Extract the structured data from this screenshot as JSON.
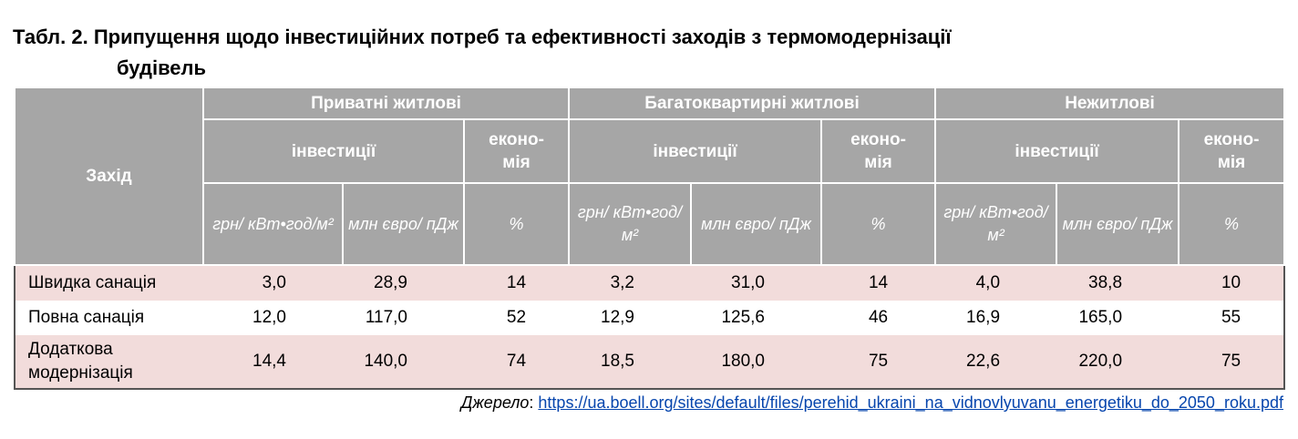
{
  "title": {
    "line1": "Табл. 2. Припущення щодо інвестиційних потреб та ефективності заходів з термомодернізації",
    "line2": "будівель"
  },
  "table": {
    "measure_header": "Захід",
    "groups": [
      {
        "name": "Приватні житлові",
        "investments": "інвестиції",
        "economy": "еконо-мія",
        "units": [
          "грн/ кВт•год/м²",
          "млн євро/ пДж",
          "%"
        ]
      },
      {
        "name": "Багатоквартирні житлові",
        "investments": "інвестиції",
        "economy": "еконо-мія",
        "units": [
          "грн/ кВт•год/ м²",
          "млн євро/ пДж",
          "%"
        ]
      },
      {
        "name": "Нежитлові",
        "investments": "інвестиції",
        "economy": "еконо-мія",
        "units": [
          "грн/ кВт•год/ м²",
          "млн євро/ пДж",
          "%"
        ]
      }
    ],
    "rows": [
      {
        "label": "Швидка санація",
        "cells": [
          "3,0",
          "28,9",
          "14",
          "3,2",
          "31,0",
          "14",
          "4,0",
          "38,8",
          "10"
        ]
      },
      {
        "label": "Повна санація",
        "cells": [
          "12,0",
          "117,0",
          "52",
          "12,9",
          "125,6",
          "46",
          "16,9",
          "165,0",
          "55"
        ]
      },
      {
        "label": "Додаткова модернізація",
        "cells": [
          "14,4",
          "140,0",
          "74",
          "18,5",
          "180,0",
          "75",
          "22,6",
          "220,0",
          "75"
        ]
      }
    ]
  },
  "source": {
    "label": "Джерело",
    "url": "https://ua.boell.org/sites/default/files/perehid_ukraini_na_vidnovlyuvanu_energetiku_do_2050_roku.pdf"
  }
}
